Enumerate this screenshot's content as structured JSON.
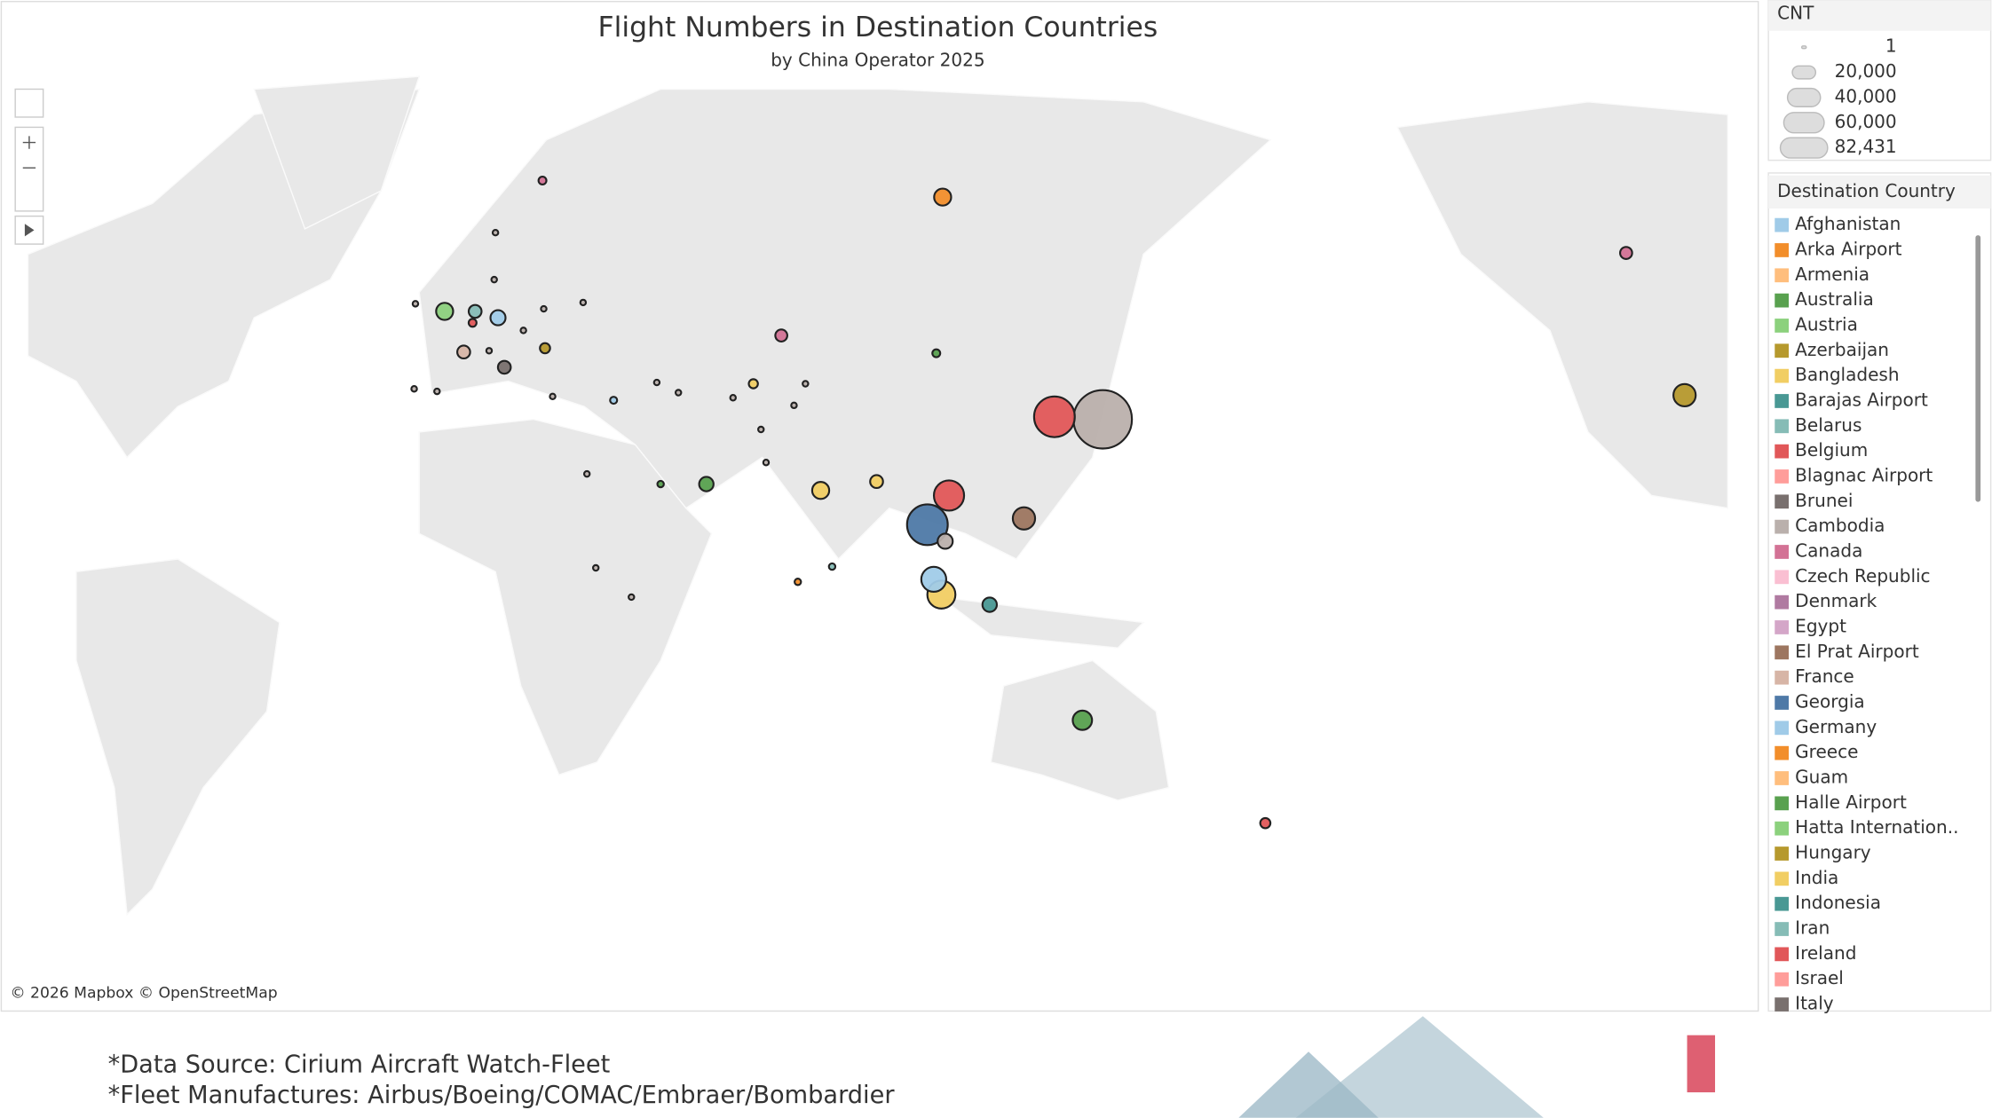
{
  "chart_data": {
    "type": "map",
    "title": "Flight Numbers  in Destination Countries",
    "subtitle": "by China Operator  2025",
    "attribution": "© 2026 Mapbox © OpenStreetMap",
    "size_legend": {
      "title": "CNT",
      "ticks": [
        1,
        {
          "value": 20000,
          "label": "20,000"
        },
        {
          "value": 40000,
          "label": "40,000"
        },
        {
          "value": 60000,
          "label": "60,000"
        },
        {
          "value": 82431,
          "label": "82,431"
        }
      ]
    },
    "color_legend": {
      "title": "Destination Country",
      "entries": [
        {
          "name": "Afghanistan",
          "color": "#a0cbe8"
        },
        {
          "name": "Arka Airport",
          "color": "#f28e2b"
        },
        {
          "name": "Armenia",
          "color": "#ffbe7d"
        },
        {
          "name": "Australia",
          "color": "#59a14f"
        },
        {
          "name": "Austria",
          "color": "#8cd17d"
        },
        {
          "name": "Azerbaijan",
          "color": "#b6992d"
        },
        {
          "name": "Bangladesh",
          "color": "#f1ce63"
        },
        {
          "name": "Barajas Airport",
          "color": "#499894"
        },
        {
          "name": "Belarus",
          "color": "#86bcb6"
        },
        {
          "name": "Belgium",
          "color": "#e15759"
        },
        {
          "name": "Blagnac Airport",
          "color": "#ff9d9a"
        },
        {
          "name": "Brunei",
          "color": "#79706e"
        },
        {
          "name": "Cambodia",
          "color": "#bab0ac"
        },
        {
          "name": "Canada",
          "color": "#d37295"
        },
        {
          "name": "Czech Republic",
          "color": "#fabfd2"
        },
        {
          "name": "Denmark",
          "color": "#b07aa1"
        },
        {
          "name": "Egypt",
          "color": "#d4a6c8"
        },
        {
          "name": "El Prat Airport",
          "color": "#9d7660"
        },
        {
          "name": "France",
          "color": "#d7b5a6"
        },
        {
          "name": "Georgia",
          "color": "#4e79a7"
        },
        {
          "name": "Germany",
          "color": "#a0cbe8"
        },
        {
          "name": "Greece",
          "color": "#f28e2b"
        },
        {
          "name": "Guam",
          "color": "#ffbe7d"
        },
        {
          "name": "Halle Airport",
          "color": "#59a14f"
        },
        {
          "name": "Hatta Internation..",
          "color": "#8cd17d"
        },
        {
          "name": "Hungary",
          "color": "#b6992d"
        },
        {
          "name": "India",
          "color": "#f1ce63"
        },
        {
          "name": "Indonesia",
          "color": "#499894"
        },
        {
          "name": "Iran",
          "color": "#86bcb6"
        },
        {
          "name": "Ireland",
          "color": "#e15759"
        },
        {
          "name": "Israel",
          "color": "#ff9d9a"
        },
        {
          "name": "Italy",
          "color": "#79706e"
        }
      ]
    },
    "bubbles": [
      {
        "value": 82431,
        "color": "#bab0ac"
      },
      {
        "value": 40000,
        "color": "#e15759"
      },
      {
        "value": 40000,
        "color": "#4e79a7"
      },
      {
        "value": 22000,
        "color": "#e15759"
      },
      {
        "value": 12000,
        "color": "#9d7660"
      },
      {
        "value": 19000,
        "color": "#f1ce63"
      },
      {
        "value": 15000,
        "color": "#a0cbe8"
      },
      {
        "value": 5500,
        "color": "#bab0ac"
      },
      {
        "value": 12000,
        "color": "#b6992d"
      },
      {
        "value": 7000,
        "color": "#f28e2b"
      },
      {
        "value": 9000,
        "color": "#59a14f"
      },
      {
        "value": 7000,
        "color": "#8cd17d"
      },
      {
        "value": 5500,
        "color": "#a0cbe8"
      },
      {
        "value": 4000,
        "color": "#86bcb6"
      },
      {
        "value": 4000,
        "color": "#d7b5a6"
      },
      {
        "value": 4000,
        "color": "#79706e"
      },
      {
        "value": 2500,
        "color": "#b6992d"
      },
      {
        "value": 7000,
        "color": "#f1ce63"
      },
      {
        "value": 4000,
        "color": "#f1ce63"
      },
      {
        "value": 3500,
        "color": "#d37295"
      },
      {
        "value": 5000,
        "color": "#59a14f"
      },
      {
        "value": 5000,
        "color": "#499894"
      },
      {
        "value": 2500,
        "color": "#e15759"
      },
      {
        "value": 3500,
        "color": "#d37295"
      },
      {
        "value": 1500,
        "color": "#d37295"
      },
      {
        "value": 1500,
        "color": "#59a14f"
      },
      {
        "value": 2000,
        "color": "#f1ce63"
      },
      {
        "value": 1200,
        "color": "#a0cbe8"
      },
      {
        "value": 1000,
        "color": "#86bcb6"
      },
      {
        "value": 1500,
        "color": "#e15759"
      },
      {
        "value": 1000,
        "color": "#f28e2b"
      },
      {
        "value": 1000,
        "color": "#59a14f"
      },
      {
        "value": 300,
        "color": "#bab0ac"
      },
      {
        "value": 300,
        "color": "#bab0ac"
      },
      {
        "value": 300,
        "color": "#bab0ac"
      },
      {
        "value": 300,
        "color": "#bab0ac"
      },
      {
        "value": 300,
        "color": "#bab0ac"
      },
      {
        "value": 300,
        "color": "#bab0ac"
      },
      {
        "value": 300,
        "color": "#bab0ac"
      },
      {
        "value": 300,
        "color": "#bab0ac"
      },
      {
        "value": 300,
        "color": "#bab0ac"
      },
      {
        "value": 300,
        "color": "#bab0ac"
      },
      {
        "value": 300,
        "color": "#bab0ac"
      },
      {
        "value": 300,
        "color": "#bab0ac"
      },
      {
        "value": 300,
        "color": "#bab0ac"
      },
      {
        "value": 300,
        "color": "#bab0ac"
      },
      {
        "value": 300,
        "color": "#bab0ac"
      },
      {
        "value": 300,
        "color": "#bab0ac"
      },
      {
        "value": 300,
        "color": "#bab0ac"
      },
      {
        "value": 300,
        "color": "#bab0ac"
      },
      {
        "value": 300,
        "color": "#bab0ac"
      },
      {
        "value": 300,
        "color": "#bab0ac"
      }
    ]
  },
  "footer": {
    "lines": [
      "*Data Source: Cirium Aircraft Watch-Fleet",
      "*Fleet Manufactures: Airbus/Boeing/COMAC/Embraer/Bombardier"
    ]
  }
}
